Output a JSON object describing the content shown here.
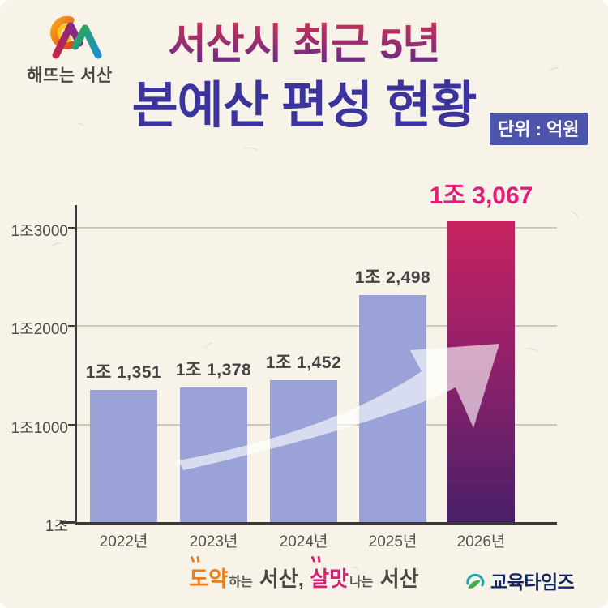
{
  "header": {
    "logo_text": "해뜨는 서산",
    "title_line1": "서산시 최근 5년",
    "title_line2": "본예산 편성 현황",
    "unit_badge": "단위 : 억원"
  },
  "chart_data": {
    "type": "bar",
    "title": "서산시 최근 5년 본예산 편성 현황",
    "unit": "억원",
    "categories": [
      "2022년",
      "2023년",
      "2024년",
      "2025년",
      "2026년"
    ],
    "values": [
      11351,
      11378,
      11452,
      12498,
      13067
    ],
    "bar_labels": [
      "1조 1,351",
      "1조 1,378",
      "1조 1,452",
      "1조 2,498",
      "1조 3,067"
    ],
    "y_ticks": [
      "1조3000",
      "1조2000",
      "1조1000",
      "1조"
    ],
    "y_tick_values": [
      13000,
      12000,
      11000,
      10000
    ],
    "ylim": [
      10000,
      13250
    ],
    "grid": true,
    "legend": "none",
    "highlight_index": 4,
    "colors": {
      "bar_default": "#9aa2d8",
      "bar_highlight_top": "#c7235f",
      "bar_highlight_mid": "#93206a",
      "bar_highlight_bottom": "#472069",
      "highlight_label": "#e21e7a",
      "label": "#454545",
      "axis": "#3c3a38",
      "gridline": "#cdc7ba"
    },
    "annotations": [
      "upward-trend-arrow"
    ]
  },
  "footer": {
    "slogan": {
      "part1_accent": "도약",
      "part1_small": "하는",
      "part1_rest": "서산,",
      "part2_accent": "살맛",
      "part2_small": "나는",
      "part2_rest": "서산"
    },
    "slogan_colors": {
      "accent1": "#ee7d18",
      "accent2": "#d81f78"
    },
    "press_logo_text": "교육타임즈"
  }
}
